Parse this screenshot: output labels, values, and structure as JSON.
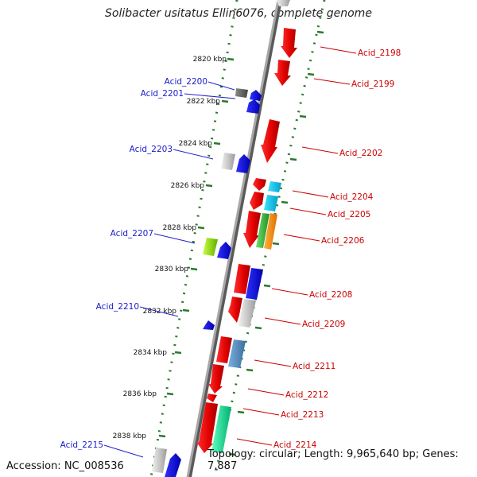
{
  "title": "Solibacter usitatus Ellin6076, complete genome",
  "accession_text": "Accession: NC_008536",
  "topology_text": "Topology: circular; Length: 9,965,640 bp; Genes: 7,887",
  "ticks": [
    "2820 kbp",
    "2822 kbp",
    "2824 kbp",
    "2826 kbp",
    "2828 kbp",
    "2830 kbp",
    "2832 kbp",
    "2834 kbp",
    "2836 kbp",
    "2838 kbp"
  ],
  "left_labels": [
    "Acid_2200",
    "Acid_2201",
    "Acid_2203",
    "Acid_2207",
    "Acid_2210",
    "Acid_2215"
  ],
  "right_labels": [
    "Acid_2198",
    "Acid_2199",
    "Acid_2202",
    "Acid_2204",
    "Acid_2205",
    "Acid_2206",
    "Acid_2208",
    "Acid_2209",
    "Acid_2211",
    "Acid_2212",
    "Acid_2213",
    "Acid_2214"
  ],
  "colors": {
    "left_label": "#1a1acc",
    "right_label": "#cc0000",
    "leader_left": "#2222cc",
    "leader_right": "#cc0000",
    "tick": "#2a7a2a",
    "backbone": "#7a7a7a"
  }
}
